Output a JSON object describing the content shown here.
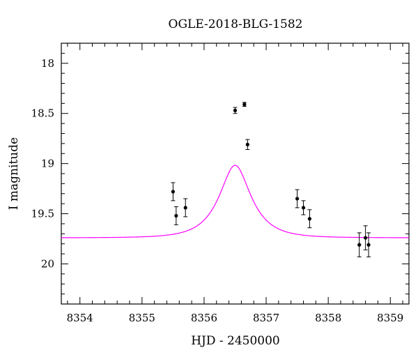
{
  "chart_data": {
    "type": "scatter",
    "title": "OGLE-2018-BLG-1582",
    "xlabel": "HJD - 2450000",
    "ylabel": "I magnitude",
    "xlim": [
      8353.7,
      8359.3
    ],
    "ylim": [
      20.4,
      17.8
    ],
    "y_inverted": true,
    "x_ticks": [
      8354,
      8355,
      8356,
      8357,
      8358,
      8359
    ],
    "y_ticks": [
      18,
      18.5,
      19,
      19.5,
      20
    ],
    "x_tick_labels": [
      "8354",
      "8355",
      "8356",
      "8357",
      "8358",
      "8359"
    ],
    "y_tick_labels": [
      "18",
      "18.5",
      "19",
      "19.5",
      "20"
    ],
    "grid": false,
    "series": [
      {
        "type": "scatter",
        "color": "#000000",
        "points": [
          {
            "x": 8355.5,
            "y": 19.28,
            "err": 0.09
          },
          {
            "x": 8355.55,
            "y": 19.52,
            "err": 0.09
          },
          {
            "x": 8355.7,
            "y": 19.44,
            "err": 0.09
          },
          {
            "x": 8356.5,
            "y": 18.47,
            "err": 0.03
          },
          {
            "x": 8356.65,
            "y": 18.41,
            "err": 0.02
          },
          {
            "x": 8356.7,
            "y": 18.81,
            "err": 0.05
          },
          {
            "x": 8357.5,
            "y": 19.35,
            "err": 0.09
          },
          {
            "x": 8357.6,
            "y": 19.44,
            "err": 0.07
          },
          {
            "x": 8357.7,
            "y": 19.55,
            "err": 0.09
          },
          {
            "x": 8358.5,
            "y": 19.81,
            "err": 0.12
          },
          {
            "x": 8358.6,
            "y": 19.74,
            "err": 0.12
          },
          {
            "x": 8358.65,
            "y": 19.81,
            "err": 0.12
          }
        ]
      },
      {
        "type": "line",
        "color": "#ff00ff",
        "model": {
          "t0": 8356.5,
          "tE": 0.45,
          "u0": 0.5,
          "m_base": 19.74,
          "fs": 0.8
        }
      }
    ]
  }
}
